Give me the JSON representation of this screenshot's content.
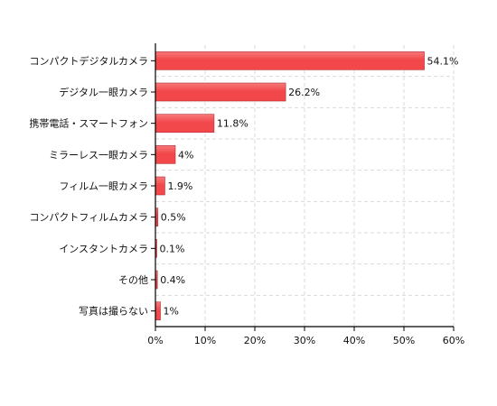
{
  "chart_data": {
    "type": "bar",
    "orientation": "horizontal",
    "categories": [
      "コンパクトデジタルカメラ",
      "デジタル一眼カメラ",
      "携帯電話・スマートフォン",
      "ミラーレス一眼カメラ",
      "フィルム一眼カメラ",
      "コンパクトフィルムカメラ",
      "インスタントカメラ",
      "その他",
      "写真は撮らない"
    ],
    "values": [
      54.1,
      26.2,
      11.8,
      4,
      1.9,
      0.5,
      0.1,
      0.4,
      1
    ],
    "value_labels": [
      "54.1%",
      "26.2%",
      "11.8%",
      "4%",
      "1.9%",
      "0.5%",
      "0.1%",
      "0.4%",
      "1%"
    ],
    "xlim": [
      0,
      60
    ],
    "x_ticks": [
      0,
      10,
      20,
      30,
      40,
      50,
      60
    ],
    "x_tick_labels": [
      "0%",
      "10%",
      "20%",
      "30%",
      "40%",
      "50%",
      "60%"
    ],
    "title": "",
    "xlabel": "",
    "ylabel": "",
    "grid": true,
    "colors": {
      "bar": "#f2484b",
      "bar_highlight": "#f87a7c",
      "bar_edge": "#b52a2d",
      "grid": "#d9d9d9",
      "axis": "#000000"
    }
  }
}
